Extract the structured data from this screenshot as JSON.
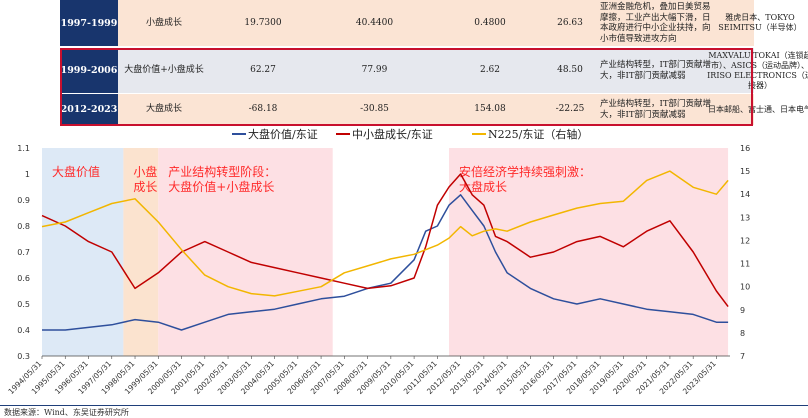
{
  "table": {
    "rows": [
      {
        "period": "1997-1999",
        "style": "小盘成长",
        "v1": "19.7300",
        "v2": "40.4400",
        "v3": "0.4800",
        "v4": "26.63",
        "desc": "亚洲金融危机，叠加日美贸易摩擦，工业产出大幅下滑，日本政府进行中小企业扶持，向小市值导致进攻方向",
        "stocks": "雅虎日本、TOKYO SEIMITSU（半导体）"
      },
      {
        "period": "1999-2006",
        "style": "大盘价值+小盘成长",
        "v1": "62.27",
        "v2": "77.99",
        "v3": "2.62",
        "v4": "48.50",
        "desc": "产业结构转型，IT部门贡献增大，非IT部门贡献减弱",
        "stocks": "MAXVALU TOKAI（连锁超市）、ASICS（运动品牌）、IRISO ELECTRONICS（连接器）"
      },
      {
        "period": "2012-2023",
        "style": "大盘成长",
        "v1": "-68.18",
        "v2": "-30.85",
        "v3": "154.08",
        "v4": "-22.25",
        "desc": "产业结构转型，IT部门贡献增大，非IT部门贡献减弱",
        "stocks": "日本邮船、富士通、日本电气"
      }
    ]
  },
  "colors": {
    "series1": "#2e4f9c",
    "series2": "#c00000",
    "series3": "#f2b600",
    "band_blue": "#dde9f6",
    "band_peach": "#fbe3cf",
    "band_pink": "#fde0e4",
    "annotation": "#ff2a2a"
  },
  "chart_data": {
    "type": "line",
    "legend_position": "top",
    "series": [
      {
        "name": "大盘价值/东证",
        "axis": "left",
        "points": [
          [
            "1994/05",
            0.4
          ],
          [
            "1995/05",
            0.4
          ],
          [
            "1996/05",
            0.41
          ],
          [
            "1997/05",
            0.42
          ],
          [
            "1998/05",
            0.44
          ],
          [
            "1999/05",
            0.43
          ],
          [
            "2000/05",
            0.4
          ],
          [
            "2001/05",
            0.43
          ],
          [
            "2002/05",
            0.46
          ],
          [
            "2003/05",
            0.47
          ],
          [
            "2004/05",
            0.48
          ],
          [
            "2005/05",
            0.5
          ],
          [
            "2006/05",
            0.52
          ],
          [
            "2007/05",
            0.53
          ],
          [
            "2008/05",
            0.56
          ],
          [
            "2009/05",
            0.58
          ],
          [
            "2010/05",
            0.67
          ],
          [
            "2010/11",
            0.78
          ],
          [
            "2011/05",
            0.8
          ],
          [
            "2011/11",
            0.88
          ],
          [
            "2012/05",
            0.92
          ],
          [
            "2012/11",
            0.86
          ],
          [
            "2013/05",
            0.8
          ],
          [
            "2013/11",
            0.7
          ],
          [
            "2014/05",
            0.62
          ],
          [
            "2015/05",
            0.56
          ],
          [
            "2016/05",
            0.52
          ],
          [
            "2017/05",
            0.5
          ],
          [
            "2018/05",
            0.52
          ],
          [
            "2019/05",
            0.5
          ],
          [
            "2020/05",
            0.48
          ],
          [
            "2021/05",
            0.47
          ],
          [
            "2022/05",
            0.46
          ],
          [
            "2023/05",
            0.43
          ],
          [
            "2023/11",
            0.43
          ]
        ]
      },
      {
        "name": "中小盘成长/东证",
        "axis": "left",
        "points": [
          [
            "1994/05",
            0.84
          ],
          [
            "1995/05",
            0.8
          ],
          [
            "1996/05",
            0.74
          ],
          [
            "1997/05",
            0.7
          ],
          [
            "1998/05",
            0.56
          ],
          [
            "1999/05",
            0.62
          ],
          [
            "2000/05",
            0.7
          ],
          [
            "2001/05",
            0.74
          ],
          [
            "2002/05",
            0.7
          ],
          [
            "2003/05",
            0.66
          ],
          [
            "2004/05",
            0.64
          ],
          [
            "2005/05",
            0.62
          ],
          [
            "2006/05",
            0.6
          ],
          [
            "2007/05",
            0.58
          ],
          [
            "2008/05",
            0.56
          ],
          [
            "2009/05",
            0.57
          ],
          [
            "2010/05",
            0.6
          ],
          [
            "2010/11",
            0.72
          ],
          [
            "2011/05",
            0.88
          ],
          [
            "2011/11",
            0.95
          ],
          [
            "2012/05",
            1.0
          ],
          [
            "2012/11",
            0.92
          ],
          [
            "2013/05",
            0.88
          ],
          [
            "2013/11",
            0.76
          ],
          [
            "2014/05",
            0.74
          ],
          [
            "2015/05",
            0.68
          ],
          [
            "2016/05",
            0.7
          ],
          [
            "2017/05",
            0.74
          ],
          [
            "2018/05",
            0.76
          ],
          [
            "2019/05",
            0.72
          ],
          [
            "2020/05",
            0.78
          ],
          [
            "2021/05",
            0.82
          ],
          [
            "2022/05",
            0.7
          ],
          [
            "2023/05",
            0.55
          ],
          [
            "2023/11",
            0.49
          ]
        ]
      },
      {
        "name": "N225/东证（右轴）",
        "axis": "right",
        "points": [
          [
            "1994/05",
            12.6
          ],
          [
            "1995/05",
            12.8
          ],
          [
            "1996/05",
            13.2
          ],
          [
            "1997/05",
            13.6
          ],
          [
            "1998/05",
            13.8
          ],
          [
            "1999/05",
            12.8
          ],
          [
            "2000/05",
            11.6
          ],
          [
            "2001/05",
            10.5
          ],
          [
            "2002/05",
            10.0
          ],
          [
            "2003/05",
            9.7
          ],
          [
            "2004/05",
            9.6
          ],
          [
            "2005/05",
            9.8
          ],
          [
            "2006/05",
            10.0
          ],
          [
            "2007/05",
            10.6
          ],
          [
            "2008/05",
            10.9
          ],
          [
            "2009/05",
            11.2
          ],
          [
            "2010/05",
            11.4
          ],
          [
            "2010/11",
            11.6
          ],
          [
            "2011/05",
            11.8
          ],
          [
            "2011/11",
            12.1
          ],
          [
            "2012/05",
            12.6
          ],
          [
            "2012/11",
            12.2
          ],
          [
            "2013/05",
            12.4
          ],
          [
            "2013/11",
            12.5
          ],
          [
            "2014/05",
            12.4
          ],
          [
            "2015/05",
            12.8
          ],
          [
            "2016/05",
            13.1
          ],
          [
            "2017/05",
            13.4
          ],
          [
            "2018/05",
            13.6
          ],
          [
            "2019/05",
            13.7
          ],
          [
            "2020/05",
            14.6
          ],
          [
            "2021/05",
            15.0
          ],
          [
            "2022/05",
            14.3
          ],
          [
            "2023/05",
            14.0
          ],
          [
            "2023/11",
            14.6
          ]
        ]
      }
    ],
    "left_axis": {
      "ylim": [
        0.3,
        1.1
      ],
      "ticks": [
        "0.3",
        "0.4",
        "0.5",
        "0.6",
        "0.7",
        "0.8",
        "0.9",
        "1",
        "1.1"
      ]
    },
    "right_axis": {
      "ylim": [
        7,
        16
      ],
      "ticks": [
        "7",
        "8",
        "9",
        "10",
        "11",
        "12",
        "13",
        "14",
        "15",
        "16"
      ]
    },
    "x_ticks": [
      "1994/05/31",
      "1995/05/31",
      "1996/05/31",
      "1997/05/31",
      "1998/05/31",
      "1999/05/31",
      "2000/05/31",
      "2001/05/31",
      "2002/05/31",
      "2003/05/31",
      "2004/05/31",
      "2005/05/31",
      "2006/05/31",
      "2007/05/31",
      "2008/05/31",
      "2009/05/31",
      "2010/05/31",
      "2011/05/31",
      "2012/05/31",
      "2013/05/31",
      "2014/05/31",
      "2015/05/31",
      "2016/05/31",
      "2017/05/31",
      "2018/05/31",
      "2019/05/31",
      "2020/05/31",
      "2021/05/31",
      "2022/05/31",
      "2023/05/31"
    ],
    "bands": [
      {
        "from": "1994/05",
        "to": "1997/11",
        "color": "band_blue",
        "label": "大盘价值"
      },
      {
        "from": "1997/11",
        "to": "1999/05",
        "color": "band_peach",
        "label": "小盘\n成长"
      },
      {
        "from": "1999/05",
        "to": "2006/11",
        "color": "band_pink",
        "label": "产业结构转型阶段：\n大盘价值+小盘成长"
      },
      {
        "from": "2011/11",
        "to": "2023/11",
        "color": "band_pink",
        "label": "安倍经济学持续强刺激：\n大盘成长"
      }
    ],
    "grid": false
  },
  "footer": "数据来源：Wind、东吴证券研究所"
}
